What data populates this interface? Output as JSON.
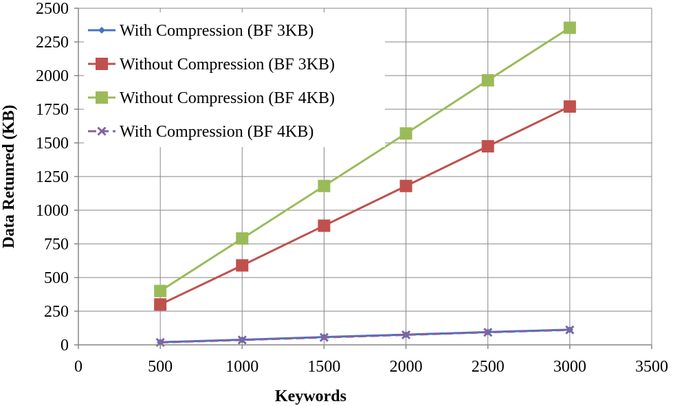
{
  "chart_data": {
    "type": "line",
    "title": "",
    "xlabel": "Keywords",
    "ylabel": "Data Retunred (KB)",
    "xlim": [
      0,
      3500
    ],
    "ylim": [
      0,
      2500
    ],
    "xticks": [
      0,
      500,
      1000,
      1500,
      2000,
      2500,
      3000,
      3500
    ],
    "yticks": [
      0,
      250,
      500,
      750,
      1000,
      1250,
      1500,
      1750,
      2000,
      2250,
      2500
    ],
    "grid": true,
    "legend_position": "top-left",
    "x": [
      500,
      1000,
      1500,
      2000,
      2500,
      3000
    ],
    "series": [
      {
        "name": "With Compression (BF 3KB)",
        "values": [
          20,
          38,
          58,
          76,
          95,
          113
        ],
        "color": "#4472c4",
        "marker": "diamond",
        "dash": false
      },
      {
        "name": "Without Compression (BF 3KB)",
        "values": [
          300,
          590,
          885,
          1180,
          1475,
          1770
        ],
        "color": "#c0504d",
        "marker": "square",
        "dash": false
      },
      {
        "name": "Without Compression (BF 4KB)",
        "values": [
          400,
          790,
          1180,
          1570,
          1965,
          2355
        ],
        "color": "#9bbb59",
        "marker": "square",
        "dash": false
      },
      {
        "name": "With Compression (BF 4KB)",
        "values": [
          18,
          36,
          55,
          74,
          93,
          111
        ],
        "color": "#8064a2",
        "marker": "x",
        "dash": true
      }
    ]
  }
}
